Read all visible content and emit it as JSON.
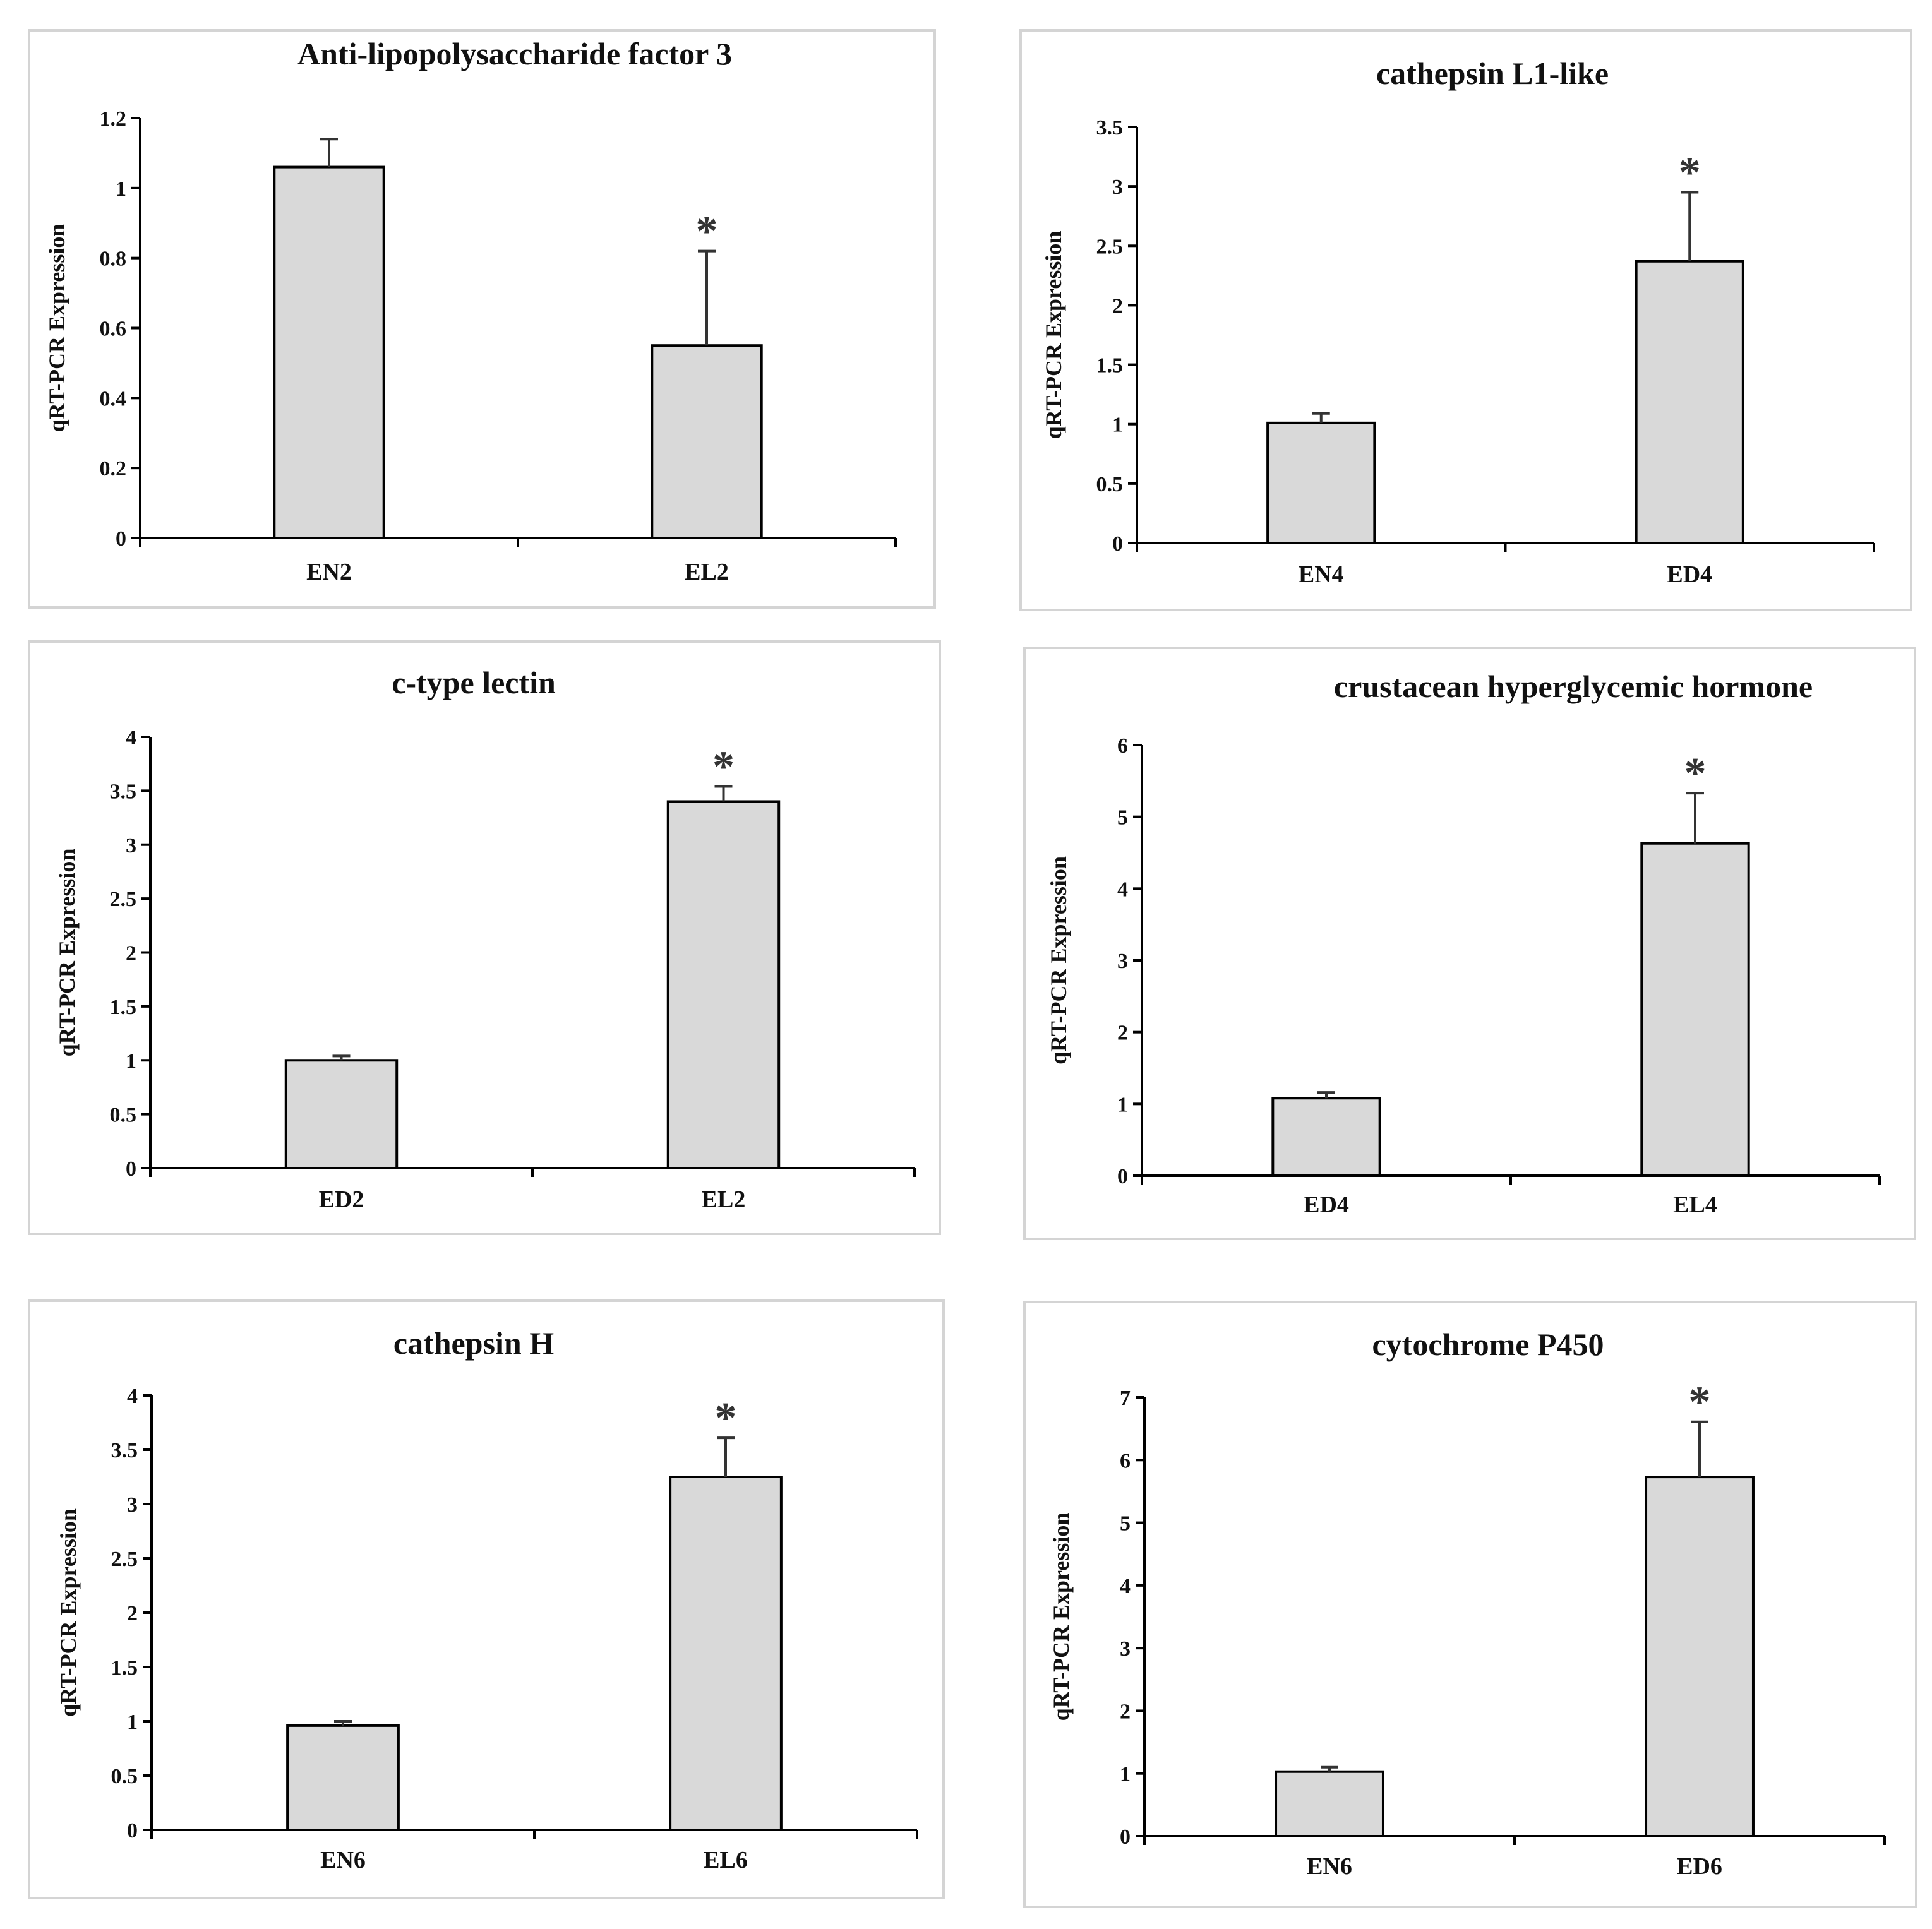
{
  "chart_data": [
    {
      "type": "bar",
      "title": "Anti-lipopolysaccharide factor 3",
      "ylabel": "qRT-PCR Expression",
      "xlabel": "",
      "ylim": [
        0,
        1.2
      ],
      "yticks": [
        "0",
        "0.2",
        "0.4",
        "0.6",
        "0.8",
        "1",
        "1.2"
      ],
      "categories": [
        "EN2",
        "EL2"
      ],
      "values": [
        1.06,
        0.55
      ],
      "errors": [
        0.08,
        0.27
      ],
      "significance": [
        "",
        "*"
      ],
      "colors": {
        "bar": "#d9d9d9"
      }
    },
    {
      "type": "bar",
      "title": "cathepsin L1-like",
      "ylabel": "qRT-PCR Expression",
      "xlabel": "",
      "ylim": [
        0,
        3.5
      ],
      "yticks": [
        "0",
        "0.5",
        "1",
        "1.5",
        "2",
        "2.5",
        "3",
        "3.5"
      ],
      "categories": [
        "EN4",
        "ED4"
      ],
      "values": [
        1.01,
        2.37
      ],
      "errors": [
        0.08,
        0.58
      ],
      "significance": [
        "",
        "*"
      ],
      "colors": {
        "bar": "#d9d9d9"
      }
    },
    {
      "type": "bar",
      "title": "c-type lectin",
      "ylabel": "qRT-PCR Expression",
      "xlabel": "",
      "ylim": [
        0,
        4
      ],
      "yticks": [
        "0",
        "0.5",
        "1",
        "1.5",
        "2",
        "2.5",
        "3",
        "3.5",
        "4"
      ],
      "categories": [
        "ED2",
        "EL2"
      ],
      "values": [
        1.0,
        3.4
      ],
      "errors": [
        0.04,
        0.14
      ],
      "significance": [
        "",
        "*"
      ],
      "colors": {
        "bar": "#d9d9d9"
      }
    },
    {
      "type": "bar",
      "title": "crustacean hyperglycemic hormone",
      "ylabel": "qRT-PCR Expression",
      "xlabel": "",
      "ylim": [
        0,
        6
      ],
      "yticks": [
        "0",
        "1",
        "2",
        "3",
        "4",
        "5",
        "6"
      ],
      "categories": [
        "ED4",
        "EL4"
      ],
      "values": [
        1.08,
        4.63
      ],
      "errors": [
        0.08,
        0.7
      ],
      "significance": [
        "",
        "*"
      ],
      "colors": {
        "bar": "#d9d9d9"
      }
    },
    {
      "type": "bar",
      "title": "cathepsin H",
      "ylabel": "qRT-PCR Expression",
      "xlabel": "",
      "ylim": [
        0,
        4
      ],
      "yticks": [
        "0",
        "0.5",
        "1",
        "1.5",
        "2",
        "2.5",
        "3",
        "3.5",
        "4"
      ],
      "categories": [
        "EN6",
        "EL6"
      ],
      "values": [
        0.96,
        3.25
      ],
      "errors": [
        0.04,
        0.36
      ],
      "significance": [
        "",
        "*"
      ],
      "colors": {
        "bar": "#d9d9d9"
      }
    },
    {
      "type": "bar",
      "title": "cytochrome P450",
      "ylabel": "qRT-PCR Expression",
      "xlabel": "",
      "ylim": [
        0,
        7
      ],
      "yticks": [
        "0",
        "1",
        "2",
        "3",
        "4",
        "5",
        "6",
        "7"
      ],
      "categories": [
        "EN6",
        "ED6"
      ],
      "values": [
        1.03,
        5.73
      ],
      "errors": [
        0.07,
        0.88
      ],
      "significance": [
        "",
        "*"
      ],
      "colors": {
        "bar": "#d9d9d9"
      }
    }
  ]
}
